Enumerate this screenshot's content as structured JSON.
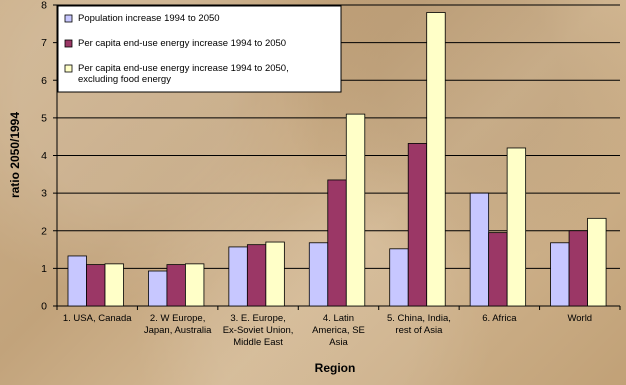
{
  "chart_data": {
    "type": "bar",
    "categories": [
      [
        "1. USA, Canada"
      ],
      [
        "2. W Europe,",
        "Japan, Australia"
      ],
      [
        "3. E. Europe,",
        "Ex-Soviet Union,",
        "Middle East"
      ],
      [
        "4. Latin",
        "America, SE",
        "Asia"
      ],
      [
        "5. China, India,",
        "rest of Asia"
      ],
      [
        "6. Africa"
      ],
      [
        "World"
      ]
    ],
    "series": [
      {
        "name": "Population increase 1994 to 2050",
        "color": "#c7c7ff",
        "values": [
          1.33,
          0.93,
          1.57,
          1.68,
          1.52,
          3.0,
          1.68
        ]
      },
      {
        "name": "Per capita end-use energy increase 1994 to 2050",
        "color": "#9b3766",
        "values": [
          1.1,
          1.1,
          1.63,
          3.35,
          4.32,
          1.95,
          2.0
        ]
      },
      {
        "name": "Per capita end-use energy increase 1994 to 2050,\nexcluding food energy",
        "color": "#ffffc8",
        "values": [
          1.12,
          1.12,
          1.7,
          5.1,
          7.8,
          4.2,
          2.33
        ]
      }
    ],
    "xlabel": "Region",
    "ylabel": "ratio 2050/1994",
    "ylim": [
      0,
      8
    ],
    "yticks": [
      0,
      1,
      2,
      3,
      4,
      5,
      6,
      7,
      8
    ],
    "grid": true,
    "legend_position": "top-left"
  }
}
